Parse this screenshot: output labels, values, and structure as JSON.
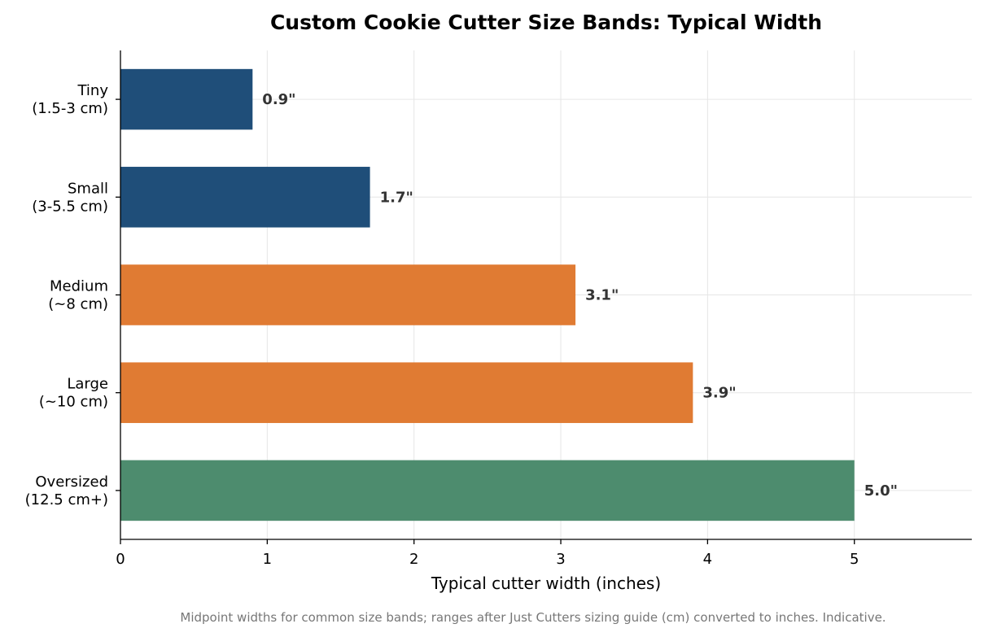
{
  "chart_data": {
    "type": "bar",
    "orientation": "horizontal",
    "title": "Custom Cookie Cutter Size Bands: Typical Width",
    "xlabel": "Typical cutter width (inches)",
    "ylabel": "",
    "caption": "Midpoint widths for common size bands; ranges after Just Cutters sizing guide (cm) converted to inches. Indicative.",
    "xlim": [
      0,
      5.8
    ],
    "xticks": [
      0,
      1,
      2,
      3,
      4,
      5
    ],
    "grid": true,
    "categories": [
      [
        "Tiny",
        "(1.5-3 cm)"
      ],
      [
        "Small",
        "(3-5.5 cm)"
      ],
      [
        "Medium",
        "(~8 cm)"
      ],
      [
        "Large",
        "(~10 cm)"
      ],
      [
        "Oversized",
        "(12.5 cm+)"
      ]
    ],
    "values": [
      0.9,
      1.7,
      3.1,
      3.9,
      5.0
    ],
    "value_labels": [
      "0.9\"",
      "1.7\"",
      "3.1\"",
      "3.9\"",
      "5.0\""
    ],
    "colors": [
      "#1f4e79",
      "#1f4e79",
      "#e07b33",
      "#e07b33",
      "#4d8c6e"
    ]
  }
}
